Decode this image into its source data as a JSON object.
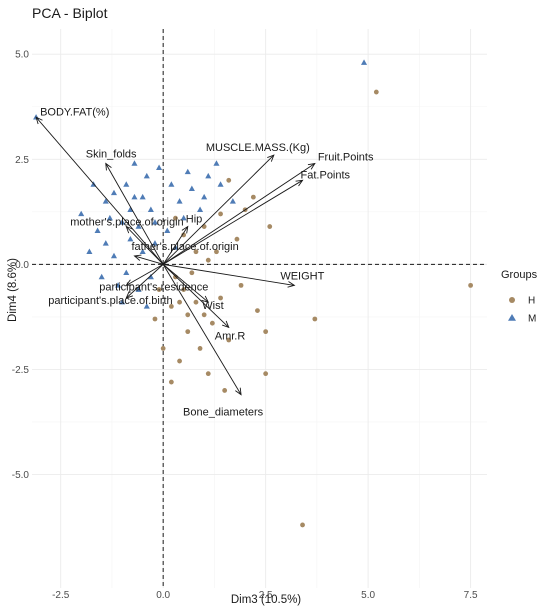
{
  "chart_data": {
    "type": "scatter",
    "title": "PCA - Biplot",
    "xlabel": "Dim3 (10.5%)",
    "ylabel": "Dim4 (8.6%)",
    "xlim": [
      -3.2,
      7.9
    ],
    "ylim": [
      -7.7,
      5.6
    ],
    "x_ticks": [
      -2.5,
      0.0,
      2.5,
      5.0,
      7.5
    ],
    "x_tick_labels": [
      "-2.5",
      "0.0",
      "2.5",
      "5.0",
      "7.5"
    ],
    "y_ticks": [
      -5.0,
      -2.5,
      0.0,
      2.5,
      5.0
    ],
    "y_tick_labels": [
      "-5.0",
      "-2.5",
      "0.0",
      "2.5",
      "5.0"
    ],
    "grid": true,
    "legend": {
      "title": "Groups",
      "placement": "right",
      "entries": [
        {
          "label": "H",
          "shape": "circle",
          "color": "#a68a64"
        },
        {
          "label": "M",
          "shape": "triangle",
          "color": "#4f7cb6"
        }
      ]
    },
    "series": [
      {
        "name": "H",
        "color": "#a68a64",
        "shape": "circle",
        "points": [
          [
            5.2,
            4.1
          ],
          [
            7.5,
            -0.5
          ],
          [
            3.7,
            -1.3
          ],
          [
            2.5,
            -1.6
          ],
          [
            2.5,
            -2.6
          ],
          [
            3.4,
            -6.2
          ],
          [
            0.3,
            -0.3
          ],
          [
            0.5,
            -0.6
          ],
          [
            0.8,
            -0.9
          ],
          [
            1.0,
            -1.2
          ],
          [
            1.2,
            -1.4
          ],
          [
            0.6,
            -1.6
          ],
          [
            1.4,
            -0.8
          ],
          [
            0.2,
            -1.0
          ],
          [
            0.9,
            -2.0
          ],
          [
            1.6,
            -1.8
          ],
          [
            0.4,
            -2.3
          ],
          [
            1.1,
            -2.6
          ],
          [
            0.0,
            -2.0
          ],
          [
            -0.2,
            -1.3
          ],
          [
            0.7,
            -0.2
          ],
          [
            1.3,
            0.3
          ],
          [
            1.8,
            0.6
          ],
          [
            2.2,
            1.6
          ],
          [
            1.4,
            1.2
          ],
          [
            1.0,
            0.9
          ],
          [
            0.5,
            0.7
          ],
          [
            2.0,
            1.3
          ],
          [
            0.3,
            1.1
          ],
          [
            1.6,
            2.0
          ],
          [
            2.6,
            0.9
          ],
          [
            1.9,
            -0.5
          ],
          [
            0.8,
            0.3
          ],
          [
            0.2,
            -2.8
          ],
          [
            1.5,
            -3.0
          ],
          [
            0.6,
            -1.2
          ],
          [
            -0.1,
            -0.6
          ],
          [
            2.3,
            -1.1
          ],
          [
            1.1,
            0.1
          ],
          [
            0.4,
            -0.9
          ]
        ]
      },
      {
        "name": "M",
        "color": "#4f7cb6",
        "shape": "triangle",
        "points": [
          [
            4.9,
            4.8
          ],
          [
            -3.1,
            3.5
          ],
          [
            -1.0,
            1.0
          ],
          [
            -0.8,
            0.6
          ],
          [
            -0.6,
            0.9
          ],
          [
            -1.2,
            0.2
          ],
          [
            -1.4,
            0.5
          ],
          [
            -0.9,
            -0.2
          ],
          [
            -1.1,
            -0.5
          ],
          [
            -0.5,
            0.3
          ],
          [
            -0.3,
            1.3
          ],
          [
            -0.7,
            1.6
          ],
          [
            -1.3,
            1.1
          ],
          [
            -1.6,
            0.8
          ],
          [
            -0.2,
            0.5
          ],
          [
            0.1,
            0.8
          ],
          [
            0.4,
            1.5
          ],
          [
            0.7,
            1.8
          ],
          [
            1.0,
            1.6
          ],
          [
            1.4,
            1.9
          ],
          [
            0.2,
            1.9
          ],
          [
            -0.4,
            2.1
          ],
          [
            -0.9,
            1.9
          ],
          [
            -1.4,
            1.5
          ],
          [
            -0.1,
            2.3
          ],
          [
            0.6,
            2.2
          ],
          [
            1.3,
            2.4
          ],
          [
            0.9,
            1.3
          ],
          [
            1.7,
            1.5
          ],
          [
            -1.8,
            0.3
          ],
          [
            -1.0,
            -0.9
          ],
          [
            -0.6,
            -0.6
          ],
          [
            -0.3,
            -0.3
          ],
          [
            -1.5,
            -0.3
          ],
          [
            -0.8,
            1.3
          ],
          [
            0.3,
            0.4
          ],
          [
            -0.2,
            1.0
          ],
          [
            -1.2,
            1.7
          ],
          [
            -0.5,
            1.6
          ],
          [
            0.5,
            1.1
          ],
          [
            -1.7,
            1.9
          ],
          [
            -2.0,
            1.2
          ],
          [
            -0.4,
            -1.0
          ],
          [
            -0.7,
            2.4
          ],
          [
            1.1,
            2.1
          ]
        ]
      }
    ],
    "variables": [
      {
        "name": "BODY.FAT(%)",
        "x": -3.1,
        "y": 3.5
      },
      {
        "name": "Skin_folds",
        "x": -1.4,
        "y": 2.4
      },
      {
        "name": "MUSCLE.MASS.(Kg)",
        "x": 2.7,
        "y": 2.6
      },
      {
        "name": "Fruit.Points",
        "x": 3.7,
        "y": 2.4
      },
      {
        "name": "Fat.Points",
        "x": 3.4,
        "y": 2.0
      },
      {
        "name": "mother's.place.of.origin",
        "x": -0.9,
        "y": 0.9
      },
      {
        "name": "Hip",
        "x": 0.6,
        "y": 0.9
      },
      {
        "name": "father's.place.of.origin",
        "x": -0.7,
        "y": 0.2
      },
      {
        "name": "participant's.residence",
        "x": -0.9,
        "y": -0.5
      },
      {
        "name": "WEIGHT",
        "x": 3.2,
        "y": -0.5
      },
      {
        "name": "participant's.place.of.birth",
        "x": -0.9,
        "y": -0.8
      },
      {
        "name": "Wist",
        "x": 1.1,
        "y": -0.9
      },
      {
        "name": "Amr.R",
        "x": 1.6,
        "y": -1.5
      },
      {
        "name": "Bone_diameters",
        "x": 1.9,
        "y": -3.1
      }
    ]
  }
}
